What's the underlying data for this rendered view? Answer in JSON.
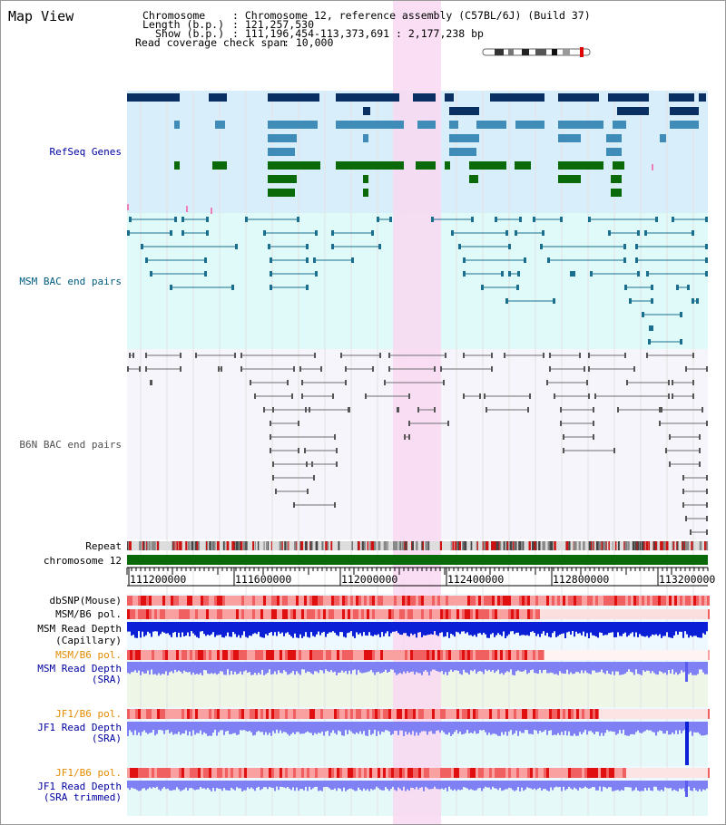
{
  "page_title": "Map View",
  "header": {
    "chromosome_label": "Chromosome",
    "chromosome_value": ": Chromosome 12, reference assembly (C57BL/6J) (Build 37)",
    "length_label": "Length (b.p.)",
    "length_value": ": 121,257,530",
    "show_label": "Show (b.p.)",
    "show_value": ": 111,196,454-113,373,691 : 2,177,238 bp",
    "coverage_label": "Read coverage check span",
    "coverage_value": ": 10,000"
  },
  "tracks": {
    "refseq": "RefSeq Genes",
    "msm_bac": "MSM BAC end pairs",
    "b6n_bac": "B6N BAC end pairs",
    "repeat": "Repeat",
    "chromosome": "chromosome 12",
    "dbsnp": "dbSNP(Mouse)",
    "msm_pol_1": "MSM/B6 pol.",
    "msm_depth_cap_1": "MSM Read Depth",
    "msm_depth_cap_2": "(Capillary)",
    "msm_pol_2": "MSM/B6 pol.",
    "msm_depth_sra_1": "MSM Read Depth",
    "msm_depth_sra_2": "(SRA)",
    "jf1_pol_1": "JF1/B6 pol.",
    "jf1_depth_sra_1": "JF1 Read Depth",
    "jf1_depth_sra_2": "(SRA)",
    "jf1_pol_2": "JF1/B6 pol.",
    "jf1_depth_trim_1": "JF1 Read Depth",
    "jf1_depth_trim_2": "(SRA trimmed)"
  },
  "axis": {
    "ticks": [
      "111200000",
      "111600000",
      "112000000",
      "112400000",
      "112800000",
      "113200000"
    ]
  },
  "colors": {
    "highlight": "#f9d8f1",
    "refseq_bg": "#d8eefa",
    "msm_bg": "#dffaf9",
    "b6n_bg": "#f5f5fb",
    "gene_dark": "#0a2f63",
    "gene_mid": "#3f8cb8",
    "gene_green": "#0a6a0a",
    "msm_pair": "#1a6e8e",
    "b6n_pair": "#707070",
    "depth_blue": "#0b1fd6",
    "depth_light": "#7e80f4",
    "orange_label": "#e38b00",
    "navy_label": "#0000a0"
  }
}
